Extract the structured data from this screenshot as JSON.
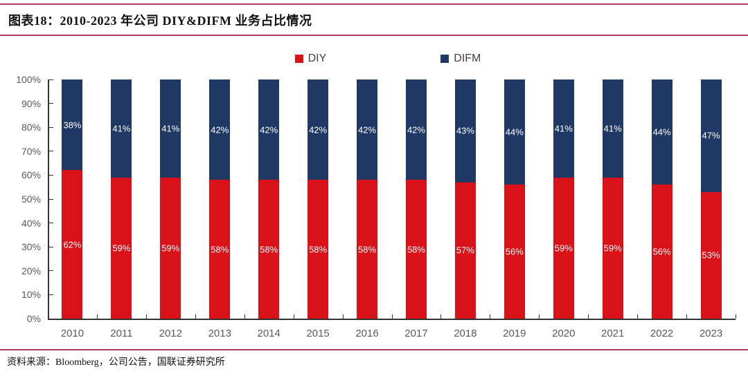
{
  "header": {
    "title": "图表18：2010-2023 年公司 DIY&DIFM 业务占比情况"
  },
  "footer": {
    "source": "资料来源：Bloomberg，公司公告，国联证券研究所"
  },
  "colors": {
    "accent_rule": "#B63A5F",
    "diy": "#D9121A",
    "difm": "#1F3864",
    "axis_text": "#595959",
    "axis_line": "#333333",
    "bar_label": "#FFFFFF",
    "background": "#FFFFFF"
  },
  "chart_data": {
    "type": "bar",
    "stacked": true,
    "title": "2010-2023 年公司 DIY&DIFM 业务占比情况",
    "categories": [
      "2010",
      "2011",
      "2012",
      "2013",
      "2014",
      "2015",
      "2016",
      "2017",
      "2018",
      "2019",
      "2020",
      "2021",
      "2022",
      "2023"
    ],
    "series": [
      {
        "name": "DIY",
        "color": "#D9121A",
        "values": [
          62,
          59,
          59,
          58,
          58,
          58,
          58,
          58,
          57,
          56,
          59,
          59,
          56,
          53
        ]
      },
      {
        "name": "DIFM",
        "color": "#1F3864",
        "values": [
          38,
          41,
          41,
          42,
          42,
          42,
          42,
          42,
          43,
          44,
          41,
          41,
          44,
          47
        ]
      }
    ],
    "value_label_suffix": "%",
    "xlabel": "",
    "ylabel": "",
    "ylim": [
      0,
      100
    ],
    "yticks": [
      "0%",
      "10%",
      "20%",
      "30%",
      "40%",
      "50%",
      "60%",
      "70%",
      "80%",
      "90%",
      "100%"
    ],
    "grid": false,
    "legend_position": "top"
  }
}
